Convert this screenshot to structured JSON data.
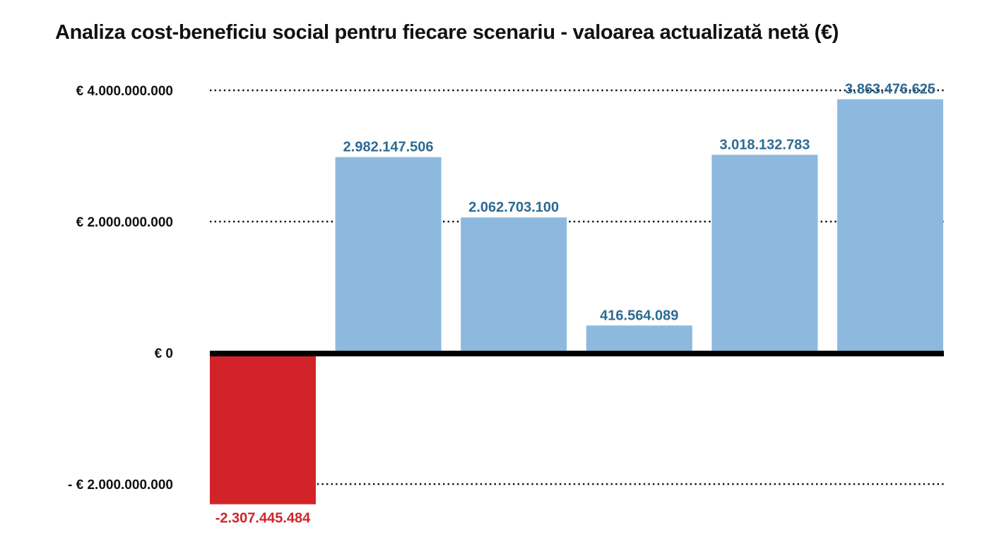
{
  "chart_data": {
    "type": "bar",
    "title": "Analiza cost-beneficiu social pentru fiecare scenariu - valoarea actualizată netă (€)",
    "xlabel": "",
    "ylabel": "",
    "ylim": [
      -2307445484,
      4000000000
    ],
    "grid": true,
    "categories": [
      "",
      "",
      "",
      "",
      "",
      ""
    ],
    "values": [
      -2307445484,
      2982147506,
      2062703100,
      416564089,
      3018132783,
      3863476625
    ],
    "data_labels": [
      "-2.307.445.484",
      "2.982.147.506",
      "2.062.703.100",
      "416.564.089",
      "3.018.132.783",
      "3.863.476.625"
    ],
    "y_ticks": [
      {
        "value": 4000000000,
        "label": "€ 4.000.000.000"
      },
      {
        "value": 2000000000,
        "label": "€ 2.000.000.000"
      },
      {
        "value": 0,
        "label": "€ 0"
      },
      {
        "value": -2000000000,
        "label": "- € 2.000.000.000"
      }
    ],
    "colors": {
      "positive_bar": "#8db9de",
      "negative_bar": "#d2232a",
      "positive_label": "#2d6a92",
      "negative_label": "#d2232a",
      "zero_line": "#000000",
      "grid": "#111111"
    }
  }
}
